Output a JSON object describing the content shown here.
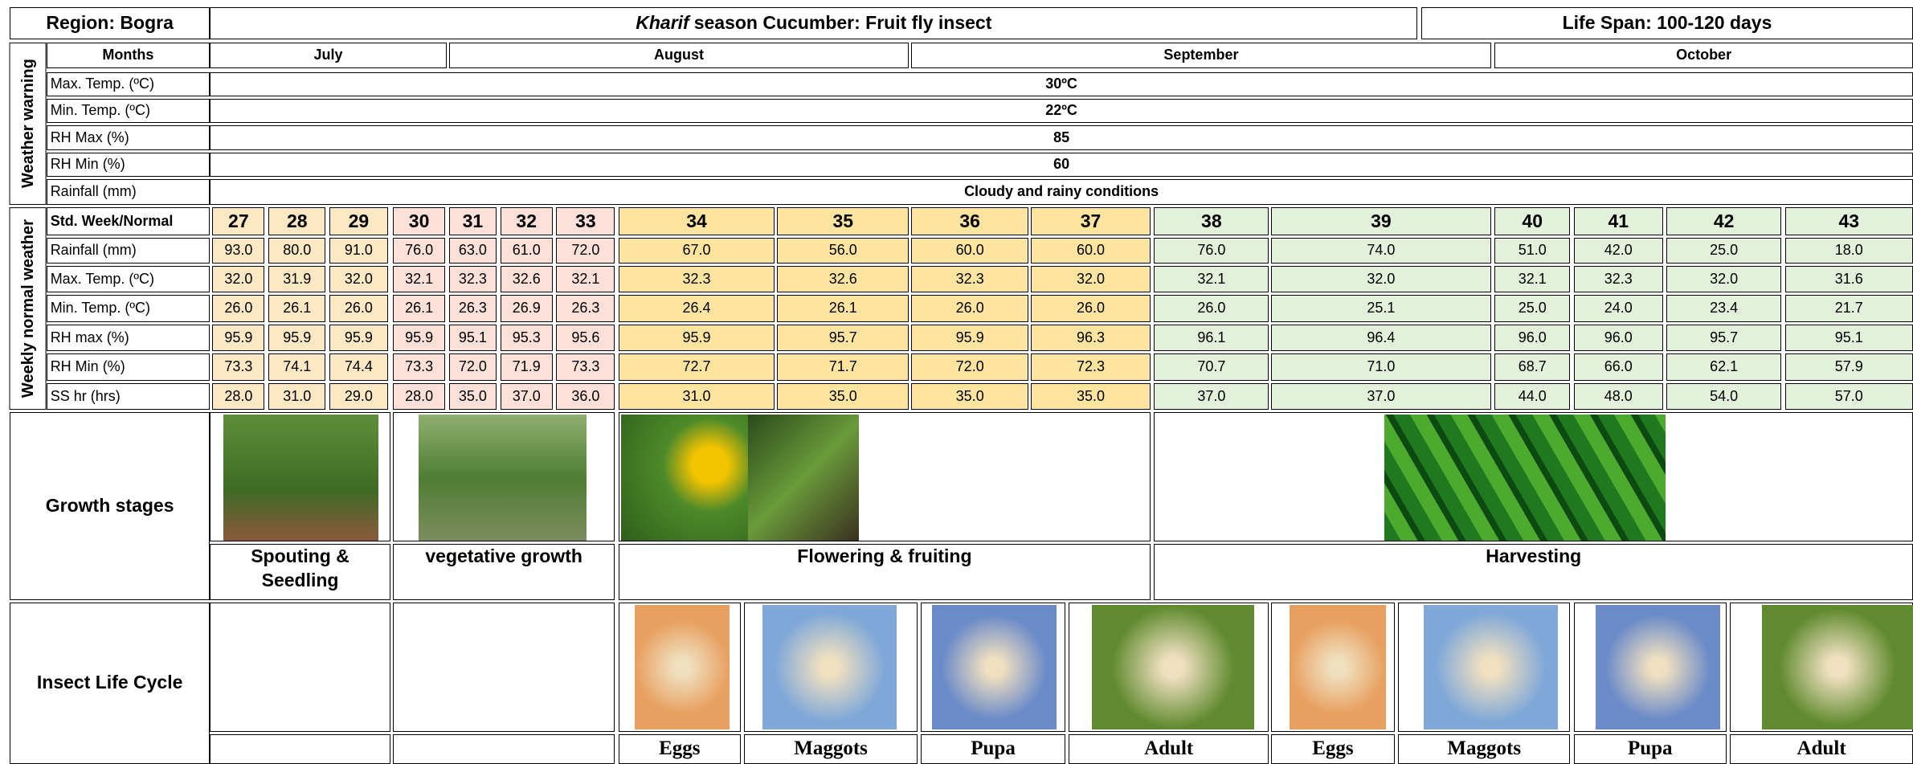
{
  "header": {
    "region": "Region: Bogra",
    "title_italic": "Kharif",
    "title_rest": "season Cucumber: Fruit fly insect",
    "life_span": "Life Span: 100-120 days"
  },
  "weather_warning": {
    "label": "Weather warning",
    "months_label": "Months",
    "months": [
      "July",
      "August",
      "September",
      "October"
    ],
    "rows": [
      {
        "label": "Max. Temp. (ºC)",
        "value": "30ºC"
      },
      {
        "label": "Min. Temp. (ºC)",
        "value": "22ºC"
      },
      {
        "label": "RH Max (%)",
        "value": "85"
      },
      {
        "label": "RH Min (%)",
        "value": "60"
      },
      {
        "label": "Rainfall (mm)",
        "value": "Cloudy and rainy conditions"
      }
    ]
  },
  "weekly": {
    "label": "Weekly normal weather",
    "header_label": "Std. Week/Normal",
    "weeks": [
      27,
      28,
      29,
      30,
      31,
      32,
      33,
      34,
      35,
      36,
      37,
      38,
      39,
      40,
      41,
      42,
      43
    ],
    "rows": [
      {
        "label": "Rainfall (mm)",
        "values": [
          "93.0",
          "80.0",
          "91.0",
          "76.0",
          "63.0",
          "61.0",
          "72.0",
          "67.0",
          "56.0",
          "60.0",
          "60.0",
          "76.0",
          "74.0",
          "51.0",
          "42.0",
          "25.0",
          "18.0"
        ]
      },
      {
        "label": "Max. Temp. (ºC)",
        "values": [
          "32.0",
          "31.9",
          "32.0",
          "32.1",
          "32.3",
          "32.6",
          "32.1",
          "32.3",
          "32.6",
          "32.3",
          "32.0",
          "32.1",
          "32.0",
          "32.1",
          "32.3",
          "32.0",
          "31.6"
        ]
      },
      {
        "label": "Min. Temp. (ºC)",
        "values": [
          "26.0",
          "26.1",
          "26.0",
          "26.1",
          "26.3",
          "26.9",
          "26.3",
          "26.4",
          "26.1",
          "26.0",
          "26.0",
          "26.0",
          "25.1",
          "25.0",
          "24.0",
          "23.4",
          "21.7"
        ]
      },
      {
        "label": "RH max (%)",
        "values": [
          "95.9",
          "95.9",
          "95.9",
          "95.9",
          "95.1",
          "95.3",
          "95.6",
          "95.9",
          "95.7",
          "95.9",
          "96.3",
          "96.1",
          "96.4",
          "96.0",
          "96.0",
          "95.7",
          "95.1"
        ]
      },
      {
        "label": "RH Min (%)",
        "values": [
          "73.3",
          "74.1",
          "74.4",
          "73.3",
          "72.0",
          "71.9",
          "73.3",
          "72.7",
          "71.7",
          "72.0",
          "72.3",
          "70.7",
          "71.0",
          "68.7",
          "66.0",
          "62.1",
          "57.9"
        ]
      },
      {
        "label": "SS hr (hrs)",
        "values": [
          "28.0",
          "31.0",
          "29.0",
          "28.0",
          "35.0",
          "37.0",
          "36.0",
          "31.0",
          "35.0",
          "35.0",
          "35.0",
          "37.0",
          "37.0",
          "44.0",
          "48.0",
          "54.0",
          "57.0"
        ]
      }
    ]
  },
  "growth": {
    "label": "Growth stages",
    "stages": [
      "Spouting & Seedling",
      "vegetative growth",
      "Flowering & fruiting",
      "Harvesting"
    ]
  },
  "insect": {
    "label": "Insect Life Cycle",
    "stages": [
      "Eggs",
      "Maggots",
      "Pupa",
      "Adult",
      "Eggs",
      "Maggots",
      "Pupa",
      "Adult"
    ]
  }
}
